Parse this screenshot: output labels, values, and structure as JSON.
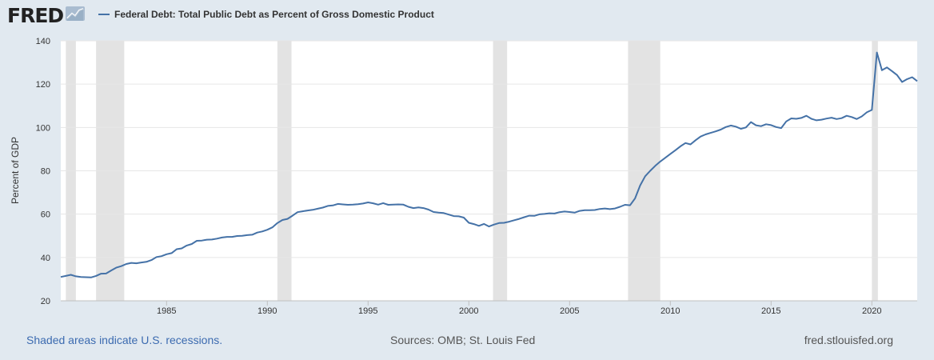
{
  "header": {
    "logo_text": "FRED",
    "legend_label": "Federal Debt: Total Public Debt as Percent of Gross Domestic Product",
    "series_color": "#4572a7"
  },
  "footer": {
    "note": "Shaded areas indicate U.S. recessions.",
    "sources": "Sources: OMB; St. Louis Fed",
    "site": "fred.stlouisfed.org"
  },
  "chart_data": {
    "type": "line",
    "ylabel": "Percent of GDP",
    "xlabel": "",
    "ylim": [
      20,
      140
    ],
    "yticks": [
      20,
      40,
      60,
      80,
      100,
      120,
      140
    ],
    "xlim": [
      1979.75,
      2022.25
    ],
    "xticks": [
      1985,
      1990,
      1995,
      2000,
      2005,
      2010,
      2015,
      2020
    ],
    "grid": "horizontal",
    "recessions": [
      [
        1980.0,
        1980.5
      ],
      [
        1981.5,
        1982.9
      ],
      [
        1990.5,
        1991.2
      ],
      [
        2001.2,
        2001.9
      ],
      [
        2007.9,
        2009.5
      ],
      [
        2020.0,
        2020.3
      ]
    ],
    "series": [
      {
        "name": "Federal Debt: Total Public Debt as Percent of Gross Domestic Product",
        "color": "#4572a7",
        "x": [
          1979.75,
          1980.0,
          1980.25,
          1980.5,
          1980.75,
          1981.0,
          1981.25,
          1981.5,
          1981.75,
          1982.0,
          1982.25,
          1982.5,
          1982.75,
          1983.0,
          1983.25,
          1983.5,
          1983.75,
          1984.0,
          1984.25,
          1984.5,
          1984.75,
          1985.0,
          1985.25,
          1985.5,
          1985.75,
          1986.0,
          1986.25,
          1986.5,
          1986.75,
          1987.0,
          1987.25,
          1987.5,
          1987.75,
          1988.0,
          1988.25,
          1988.5,
          1988.75,
          1989.0,
          1989.25,
          1989.5,
          1989.75,
          1990.0,
          1990.25,
          1990.5,
          1990.75,
          1991.0,
          1991.25,
          1991.5,
          1991.75,
          1992.0,
          1992.25,
          1992.5,
          1992.75,
          1993.0,
          1993.25,
          1993.5,
          1993.75,
          1994.0,
          1994.25,
          1994.5,
          1994.75,
          1995.0,
          1995.25,
          1995.5,
          1995.75,
          1996.0,
          1996.25,
          1996.5,
          1996.75,
          1997.0,
          1997.25,
          1997.5,
          1997.75,
          1998.0,
          1998.25,
          1998.5,
          1998.75,
          1999.0,
          1999.25,
          1999.5,
          1999.75,
          2000.0,
          2000.25,
          2000.5,
          2000.75,
          2001.0,
          2001.25,
          2001.5,
          2001.75,
          2002.0,
          2002.25,
          2002.5,
          2002.75,
          2003.0,
          2003.25,
          2003.5,
          2003.75,
          2004.0,
          2004.25,
          2004.5,
          2004.75,
          2005.0,
          2005.25,
          2005.5,
          2005.75,
          2006.0,
          2006.25,
          2006.5,
          2006.75,
          2007.0,
          2007.25,
          2007.5,
          2007.75,
          2008.0,
          2008.25,
          2008.5,
          2008.75,
          2009.0,
          2009.25,
          2009.5,
          2009.75,
          2010.0,
          2010.25,
          2010.5,
          2010.75,
          2011.0,
          2011.25,
          2011.5,
          2011.75,
          2012.0,
          2012.25,
          2012.5,
          2012.75,
          2013.0,
          2013.25,
          2013.5,
          2013.75,
          2014.0,
          2014.25,
          2014.5,
          2014.75,
          2015.0,
          2015.25,
          2015.5,
          2015.75,
          2016.0,
          2016.25,
          2016.5,
          2016.75,
          2017.0,
          2017.25,
          2017.5,
          2017.75,
          2018.0,
          2018.25,
          2018.5,
          2018.75,
          2019.0,
          2019.25,
          2019.5,
          2019.75,
          2020.0,
          2020.25,
          2020.5,
          2020.75,
          2021.0,
          2021.25,
          2021.5,
          2021.75,
          2022.0,
          2022.25
        ],
        "values": [
          31.0,
          31.5,
          32.0,
          31.3,
          31.0,
          30.9,
          30.8,
          31.5,
          32.5,
          32.6,
          34.0,
          35.3,
          36.0,
          37.0,
          37.5,
          37.3,
          37.7,
          38.0,
          38.8,
          40.2,
          40.6,
          41.5,
          42.0,
          43.8,
          44.2,
          45.5,
          46.2,
          47.7,
          47.8,
          48.2,
          48.3,
          48.7,
          49.2,
          49.5,
          49.5,
          49.9,
          50.0,
          50.3,
          50.5,
          51.5,
          52.0,
          52.8,
          53.9,
          55.9,
          57.3,
          57.8,
          59.3,
          60.9,
          61.3,
          61.7,
          62.0,
          62.5,
          63.0,
          63.8,
          64.0,
          64.7,
          64.5,
          64.3,
          64.4,
          64.6,
          64.9,
          65.4,
          65.0,
          64.4,
          65.1,
          64.3,
          64.4,
          64.5,
          64.4,
          63.4,
          62.8,
          63.1,
          62.8,
          62.1,
          61.0,
          60.7,
          60.5,
          59.8,
          59.1,
          59.0,
          58.4,
          56.0,
          55.4,
          54.6,
          55.5,
          54.3,
          55.2,
          55.9,
          56.0,
          56.5,
          57.2,
          57.8,
          58.6,
          59.3,
          59.2,
          59.9,
          60.1,
          60.4,
          60.3,
          60.9,
          61.2,
          61.0,
          60.7,
          61.5,
          61.8,
          61.8,
          61.9,
          62.4,
          62.6,
          62.3,
          62.6,
          63.4,
          64.3,
          64.1,
          67.3,
          73.2,
          77.5,
          80.0,
          82.3,
          84.3,
          86.0,
          87.8,
          89.5,
          91.3,
          92.8,
          92.2,
          94.1,
          95.8,
          96.8,
          97.5,
          98.2,
          99.0,
          100.2,
          100.9,
          100.4,
          99.4,
          100.0,
          102.5,
          101.0,
          100.6,
          101.5,
          101.1,
          100.2,
          99.7,
          102.8,
          104.2,
          104.0,
          104.4,
          105.4,
          104.0,
          103.3,
          103.6,
          104.1,
          104.5,
          103.9,
          104.3,
          105.4,
          104.8,
          103.9,
          105.1,
          107.0,
          108.1,
          134.6,
          126.4,
          127.7,
          126.0,
          124.2,
          121.0,
          122.3,
          123.2,
          121.4
        ]
      }
    ]
  }
}
